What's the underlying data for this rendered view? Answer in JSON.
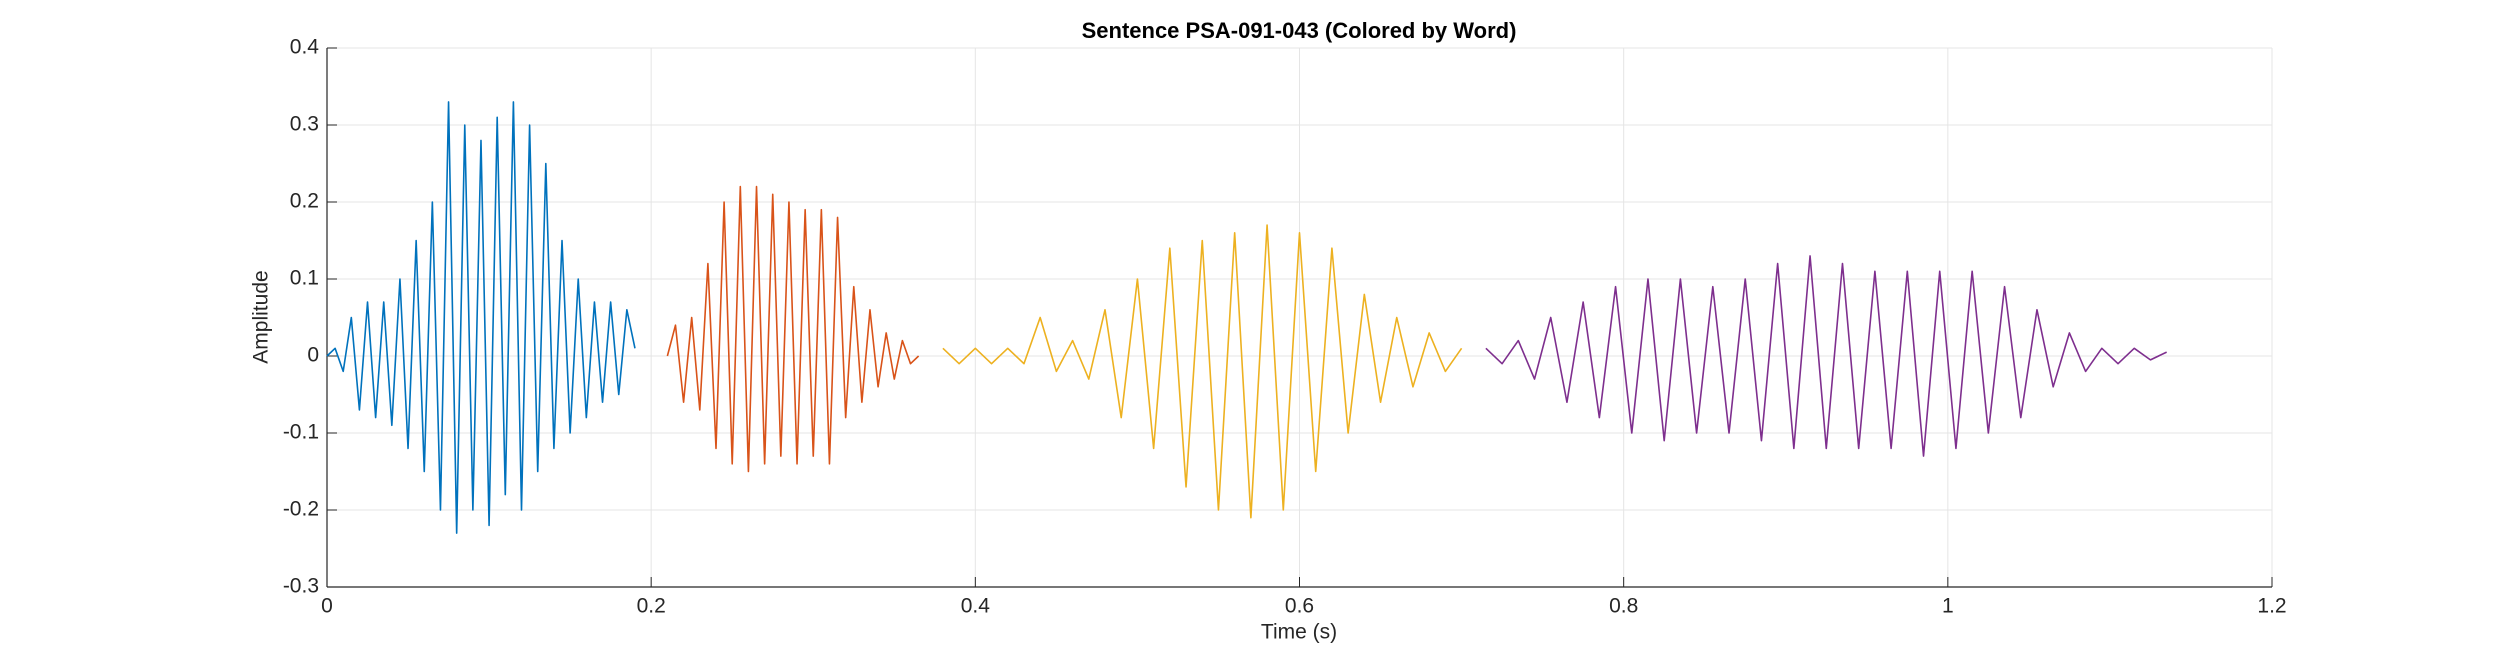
{
  "chart_data": {
    "type": "line",
    "title": "Sentence PSA-091-043 (Colored by Word)",
    "xlabel": "Time (s)",
    "ylabel": "Amplitude",
    "xlim": [
      0,
      1.2
    ],
    "xticks": [
      0,
      0.2,
      0.4,
      0.6,
      0.8,
      1,
      1.2
    ],
    "ylim": [
      -0.3,
      0.4
    ],
    "yticks": [
      -0.3,
      -0.2,
      -0.1,
      0,
      0.1,
      0.2,
      0.3,
      0.4
    ],
    "grid": true,
    "series": [
      {
        "color": "#0072BD",
        "x": [
          0,
          0.005,
          0.01,
          0.015,
          0.02,
          0.025,
          0.03,
          0.035,
          0.04,
          0.045,
          0.05,
          0.055,
          0.06,
          0.065,
          0.07,
          0.075,
          0.08,
          0.085,
          0.09,
          0.095,
          0.1,
          0.105,
          0.11,
          0.115,
          0.12,
          0.125,
          0.13,
          0.135,
          0.14,
          0.145,
          0.15,
          0.155,
          0.16,
          0.165,
          0.17,
          0.175,
          0.18,
          0.185,
          0.19
        ],
        "values": [
          0,
          0.01,
          -0.02,
          0.05,
          -0.07,
          0.07,
          -0.08,
          0.07,
          -0.09,
          0.1,
          -0.12,
          0.15,
          -0.15,
          0.2,
          -0.2,
          0.33,
          -0.23,
          0.3,
          -0.2,
          0.28,
          -0.22,
          0.31,
          -0.18,
          0.33,
          -0.2,
          0.3,
          -0.15,
          0.25,
          -0.12,
          0.15,
          -0.1,
          0.1,
          -0.08,
          0.07,
          -0.06,
          0.07,
          -0.05,
          0.06,
          0.01
        ]
      },
      {
        "color": "#D95319",
        "x": [
          0.21,
          0.215,
          0.22,
          0.225,
          0.23,
          0.235,
          0.24,
          0.245,
          0.25,
          0.255,
          0.26,
          0.265,
          0.27,
          0.275,
          0.28,
          0.285,
          0.29,
          0.295,
          0.3,
          0.305,
          0.31,
          0.315,
          0.32,
          0.325,
          0.33,
          0.335,
          0.34,
          0.345,
          0.35,
          0.355,
          0.36,
          0.365
        ],
        "values": [
          0,
          0.04,
          -0.06,
          0.05,
          -0.07,
          0.12,
          -0.12,
          0.2,
          -0.14,
          0.22,
          -0.15,
          0.22,
          -0.14,
          0.21,
          -0.13,
          0.2,
          -0.14,
          0.19,
          -0.13,
          0.19,
          -0.14,
          0.18,
          -0.08,
          0.09,
          -0.06,
          0.06,
          -0.04,
          0.03,
          -0.03,
          0.02,
          -0.01,
          0
        ]
      },
      {
        "color": "#EDB120",
        "x": [
          0.38,
          0.39,
          0.4,
          0.41,
          0.42,
          0.43,
          0.44,
          0.45,
          0.46,
          0.47,
          0.48,
          0.49,
          0.5,
          0.51,
          0.52,
          0.53,
          0.54,
          0.55,
          0.56,
          0.57,
          0.58,
          0.59,
          0.6,
          0.61,
          0.62,
          0.63,
          0.64,
          0.65,
          0.66,
          0.67,
          0.68,
          0.69,
          0.7
        ],
        "values": [
          0.01,
          -0.01,
          0.01,
          -0.01,
          0.01,
          -0.01,
          0.05,
          -0.02,
          0.02,
          -0.03,
          0.06,
          -0.08,
          0.1,
          -0.12,
          0.14,
          -0.17,
          0.15,
          -0.2,
          0.16,
          -0.21,
          0.17,
          -0.2,
          0.16,
          -0.15,
          0.14,
          -0.1,
          0.08,
          -0.06,
          0.05,
          -0.04,
          0.03,
          -0.02,
          0.01
        ]
      },
      {
        "color": "#7E2F8E",
        "x": [
          0.715,
          0.725,
          0.735,
          0.745,
          0.755,
          0.765,
          0.775,
          0.785,
          0.795,
          0.805,
          0.815,
          0.825,
          0.835,
          0.845,
          0.855,
          0.865,
          0.875,
          0.885,
          0.895,
          0.905,
          0.915,
          0.925,
          0.935,
          0.945,
          0.955,
          0.965,
          0.975,
          0.985,
          0.995,
          1.005,
          1.015,
          1.025,
          1.035,
          1.045,
          1.055,
          1.065,
          1.075,
          1.085,
          1.095,
          1.105,
          1.115,
          1.125,
          1.135
        ],
        "values": [
          0.01,
          -0.01,
          0.02,
          -0.03,
          0.05,
          -0.06,
          0.07,
          -0.08,
          0.09,
          -0.1,
          0.1,
          -0.11,
          0.1,
          -0.1,
          0.09,
          -0.1,
          0.1,
          -0.11,
          0.12,
          -0.12,
          0.13,
          -0.12,
          0.12,
          -0.12,
          0.11,
          -0.12,
          0.11,
          -0.13,
          0.11,
          -0.12,
          0.11,
          -0.1,
          0.09,
          -0.08,
          0.06,
          -0.04,
          0.03,
          -0.02,
          0.01,
          -0.01,
          0.01,
          -0.005,
          0.005
        ]
      }
    ]
  }
}
